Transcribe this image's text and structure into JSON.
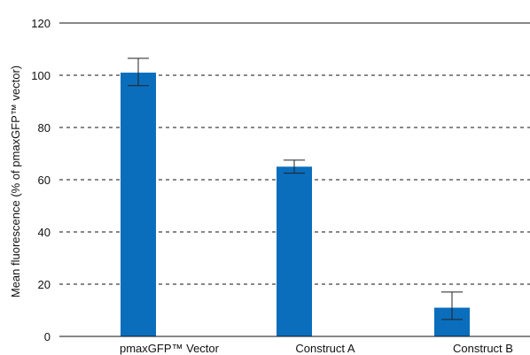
{
  "chart_data": {
    "type": "bar",
    "title": "",
    "xlabel": "",
    "ylabel": "Mean fluorescence (% of pmaxGFP™ vector)",
    "categories": [
      "pmaxGFP™ Vector",
      "Construct A",
      "Construct B"
    ],
    "values": [
      101,
      65,
      11
    ],
    "errors": [
      {
        "low": 96,
        "high": 106.5
      },
      {
        "low": 62.5,
        "high": 67.5
      },
      {
        "low": 6.5,
        "high": 17
      }
    ],
    "ylim": [
      0,
      120
    ],
    "yticks": [
      "0",
      "20",
      "40",
      "60",
      "80",
      "100",
      "120"
    ],
    "ytick_values": [
      0,
      20,
      40,
      60,
      80,
      100,
      120
    ],
    "grid": "dashed horizontal",
    "bar_color": "#0a6ebd",
    "axis_color": "#111111"
  }
}
